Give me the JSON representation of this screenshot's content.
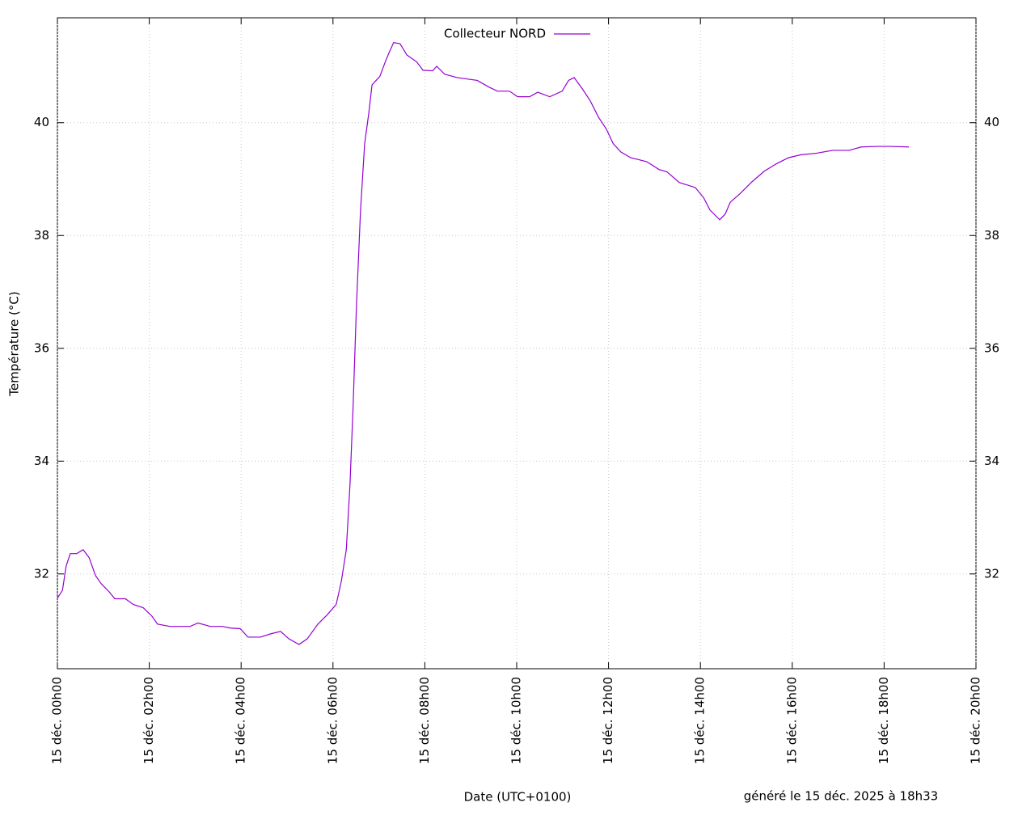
{
  "chart_data": {
    "type": "line",
    "ylabel": "Température (°C)",
    "xlabel": "Date (UTC+0100)",
    "footnote": "généré le 15 déc. 2025 à 18h33",
    "grid": true,
    "legend": "top-center",
    "xlim": [
      0,
      20
    ],
    "xticks": [
      {
        "value": 0,
        "label": "15 déc. 00h00"
      },
      {
        "value": 2,
        "label": "15 déc. 02h00"
      },
      {
        "value": 4,
        "label": "15 déc. 04h00"
      },
      {
        "value": 6,
        "label": "15 déc. 06h00"
      },
      {
        "value": 8,
        "label": "15 déc. 08h00"
      },
      {
        "value": 10,
        "label": "15 déc. 10h00"
      },
      {
        "value": 12,
        "label": "15 déc. 12h00"
      },
      {
        "value": 14,
        "label": "15 déc. 14h00"
      },
      {
        "value": 16,
        "label": "15 déc. 16h00"
      },
      {
        "value": 18,
        "label": "15 déc. 18h00"
      },
      {
        "value": 20,
        "label": "15 déc. 20h00"
      }
    ],
    "ylim": [
      30.32,
      41.86
    ],
    "yticks": [
      32,
      34,
      36,
      38,
      40
    ],
    "x": [
      0,
      0.11,
      0.19,
      0.28,
      0.42,
      0.56,
      0.69,
      0.83,
      0.95,
      1.13,
      1.25,
      1.48,
      1.65,
      1.87,
      2.06,
      2.18,
      2.45,
      2.89,
      3.06,
      3.33,
      3.59,
      3.77,
      3.98,
      4.15,
      4.42,
      4.65,
      4.86,
      5.04,
      5.26,
      5.44,
      5.67,
      5.88,
      6.07,
      6.18,
      6.29,
      6.37,
      6.44,
      6.51,
      6.6,
      6.69,
      6.78,
      6.85,
      6.94,
      7.02,
      7.13,
      7.2,
      7.32,
      7.46,
      7.61,
      7.82,
      7.96,
      8.17,
      8.26,
      8.43,
      8.7,
      9.14,
      9.4,
      9.58,
      9.84,
      10.02,
      10.28,
      10.46,
      10.72,
      10.99,
      11.13,
      11.25,
      11.43,
      11.6,
      11.78,
      11.95,
      12.1,
      12.27,
      12.48,
      12.83,
      13.1,
      13.27,
      13.54,
      13.89,
      14.07,
      14.21,
      14.42,
      14.54,
      14.65,
      14.86,
      15.12,
      15.39,
      15.65,
      15.92,
      16.18,
      16.53,
      16.88,
      17.24,
      17.5,
      17.85,
      18.12,
      18.54
    ],
    "series": [
      {
        "name": "Collecteur NORD",
        "color": "#9400d3",
        "values": [
          31.57,
          31.71,
          32.14,
          32.36,
          32.36,
          32.43,
          32.29,
          31.97,
          31.83,
          31.68,
          31.56,
          31.56,
          31.46,
          31.4,
          31.25,
          31.11,
          31.07,
          31.07,
          31.13,
          31.07,
          31.07,
          31.04,
          31.03,
          30.88,
          30.88,
          30.94,
          30.98,
          30.85,
          30.75,
          30.85,
          31.11,
          31.28,
          31.46,
          31.86,
          32.43,
          33.58,
          35.01,
          36.73,
          38.45,
          39.63,
          40.17,
          40.67,
          40.75,
          40.82,
          41.06,
          41.2,
          41.42,
          41.4,
          41.2,
          41.08,
          40.93,
          40.92,
          41.0,
          40.86,
          40.8,
          40.75,
          40.63,
          40.56,
          40.56,
          40.46,
          40.46,
          40.54,
          40.46,
          40.56,
          40.75,
          40.8,
          40.6,
          40.39,
          40.1,
          39.89,
          39.63,
          39.48,
          39.38,
          39.31,
          39.17,
          39.13,
          38.94,
          38.85,
          38.67,
          38.45,
          38.28,
          38.38,
          38.59,
          38.74,
          38.95,
          39.14,
          39.27,
          39.38,
          39.43,
          39.46,
          39.51,
          39.51,
          39.57,
          39.58,
          39.58,
          39.57
        ]
      }
    ]
  }
}
